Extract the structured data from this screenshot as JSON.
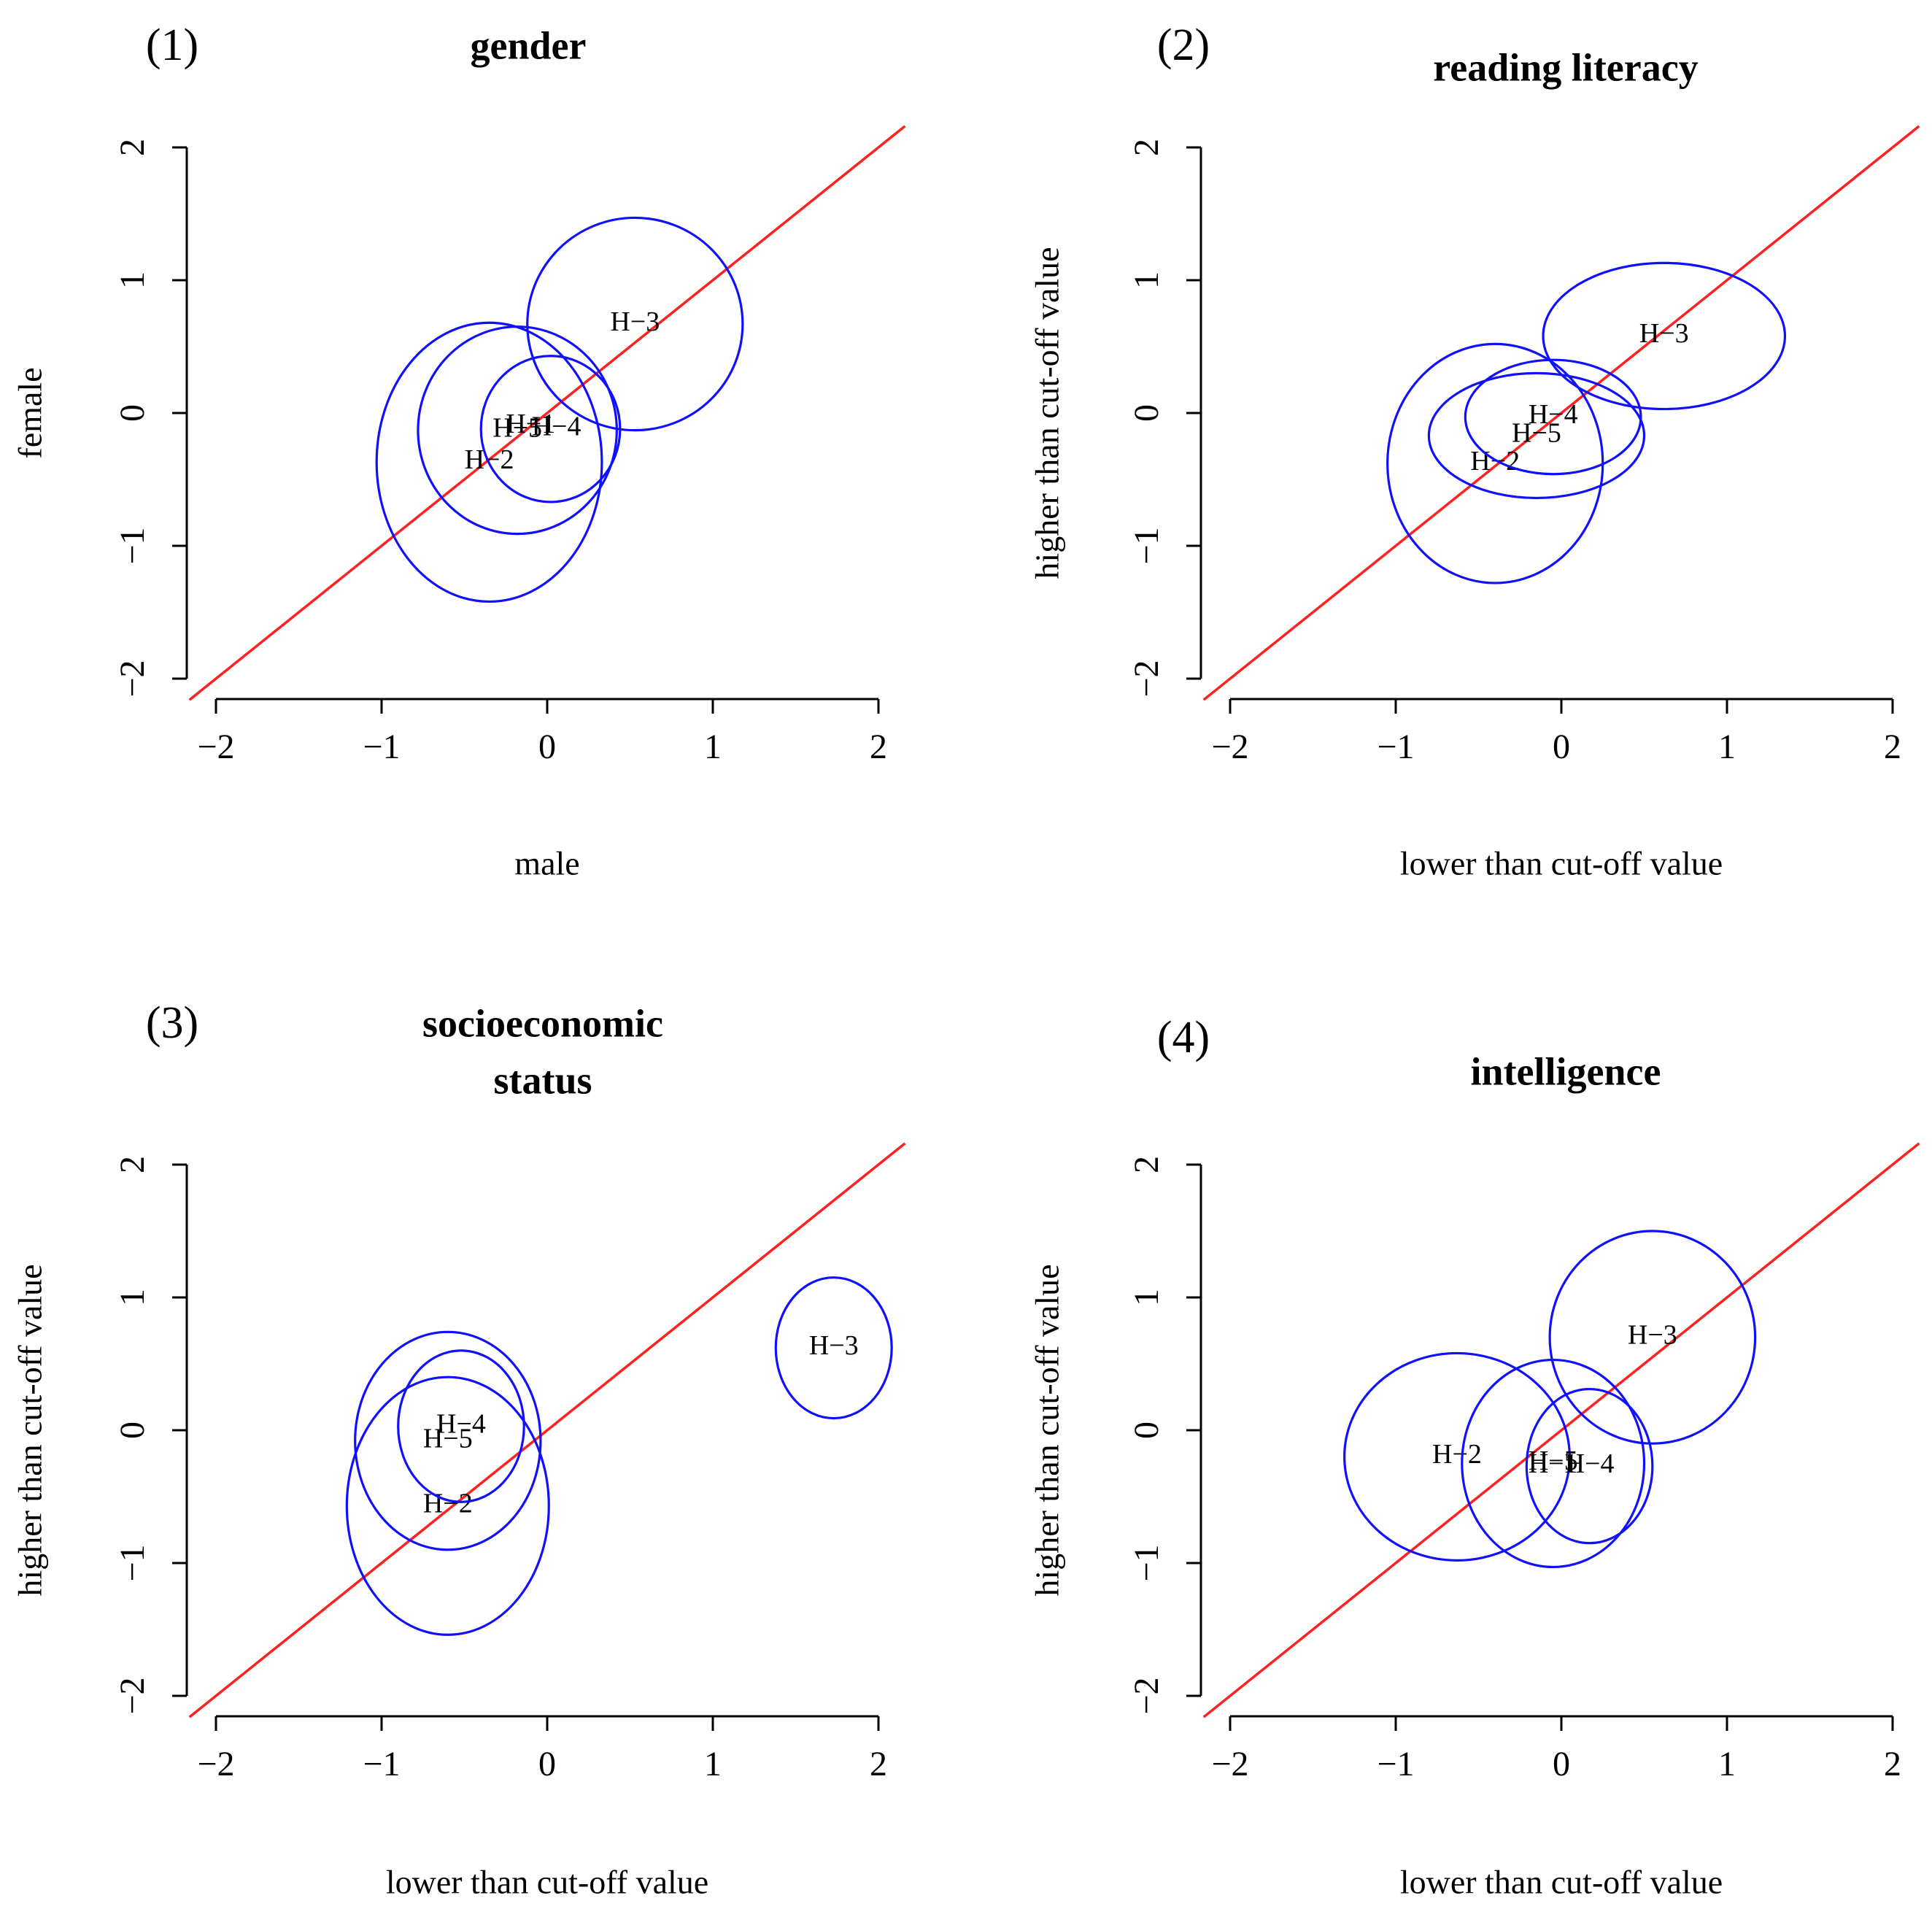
{
  "chart_data": [
    {
      "type": "scatter",
      "panel": "(1)",
      "title": [
        "gender"
      ],
      "xlabel": "male",
      "ylabel": "female",
      "xlim": [
        -2,
        2
      ],
      "ylim": [
        -2,
        2
      ],
      "ticks": [
        -2,
        -1,
        0,
        1,
        2
      ],
      "reference_line": "y = x",
      "points": [
        {
          "label": "H−2",
          "x": -0.35,
          "y": -0.37,
          "rx": 0.68,
          "ry": 1.05
        },
        {
          "label": "H−3",
          "x": 0.53,
          "y": 0.67,
          "rx": 0.65,
          "ry": 0.8
        },
        {
          "label": "H−4",
          "x": 0.02,
          "y": -0.12,
          "rx": 0.42,
          "ry": 0.55
        },
        {
          "label": "H−5",
          "x": -0.18,
          "y": -0.13,
          "rx": 0.6,
          "ry": 0.78
        },
        {
          "label": "H−1",
          "x": -0.1,
          "y": -0.1,
          "rx": 0,
          "ry": 0
        }
      ]
    },
    {
      "type": "scatter",
      "panel": "(2)",
      "title": [
        "reading literacy"
      ],
      "xlabel": "lower than cut-off value",
      "ylabel": "higher than cut-off value",
      "xlim": [
        -2,
        2
      ],
      "ylim": [
        -2,
        2
      ],
      "ticks": [
        -2,
        -1,
        0,
        1,
        2
      ],
      "reference_line": "y = x",
      "points": [
        {
          "label": "H−2",
          "x": -0.4,
          "y": -0.38,
          "rx": 0.65,
          "ry": 0.9
        },
        {
          "label": "H−3",
          "x": 0.62,
          "y": 0.58,
          "rx": 0.73,
          "ry": 0.55
        },
        {
          "label": "H−4",
          "x": -0.05,
          "y": -0.03,
          "rx": 0.53,
          "ry": 0.43
        },
        {
          "label": "H−5",
          "x": -0.15,
          "y": -0.17,
          "rx": 0.65,
          "ry": 0.47
        }
      ]
    },
    {
      "type": "scatter",
      "panel": "(3)",
      "title": [
        "socioeconomic",
        "status"
      ],
      "xlabel": "lower than cut-off value",
      "ylabel": "higher than cut-off value",
      "xlim": [
        -2,
        2
      ],
      "ylim": [
        -2,
        2
      ],
      "ticks": [
        -2,
        -1,
        0,
        1,
        2
      ],
      "reference_line": "y = x",
      "points": [
        {
          "label": "H−2",
          "x": -0.6,
          "y": -0.57,
          "rx": 0.61,
          "ry": 0.97
        },
        {
          "label": "H−3",
          "x": 1.73,
          "y": 0.62,
          "rx": 0.35,
          "ry": 0.53
        },
        {
          "label": "H−4",
          "x": -0.52,
          "y": 0.03,
          "rx": 0.38,
          "ry": 0.57
        },
        {
          "label": "H−5",
          "x": -0.6,
          "y": -0.08,
          "rx": 0.56,
          "ry": 0.82
        }
      ]
    },
    {
      "type": "scatter",
      "panel": "(4)",
      "title": [
        "intelligence"
      ],
      "xlabel": "lower than cut-off value",
      "ylabel": "higher than cut-off value",
      "xlim": [
        -2,
        2
      ],
      "ylim": [
        -2,
        2
      ],
      "ticks": [
        -2,
        -1,
        0,
        1,
        2
      ],
      "reference_line": "y = x",
      "points": [
        {
          "label": "H−2",
          "x": -0.63,
          "y": -0.2,
          "rx": 0.68,
          "ry": 0.78
        },
        {
          "label": "H−3",
          "x": 0.55,
          "y": 0.7,
          "rx": 0.62,
          "ry": 0.8
        },
        {
          "label": "H−4",
          "x": 0.17,
          "y": -0.27,
          "rx": 0.38,
          "ry": 0.58
        },
        {
          "label": "H−5",
          "x": -0.05,
          "y": -0.25,
          "rx": 0.55,
          "ry": 0.78
        },
        {
          "label": "H−1",
          "x": -0.05,
          "y": -0.27,
          "rx": 0,
          "ry": 0
        }
      ]
    }
  ]
}
